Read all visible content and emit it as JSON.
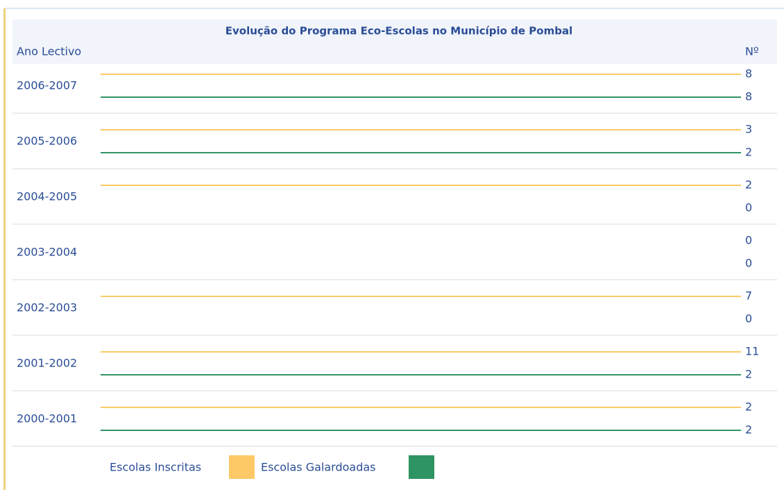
{
  "title": "Evolução do Programa Eco-Escolas no Município de Pombal",
  "header": {
    "year": "Ano Lectivo",
    "count": "Nº"
  },
  "colors": {
    "inscritas": "#fdc966",
    "galardoadas": "#2f9463"
  },
  "rows": [
    {
      "year": "2006-2007",
      "inscritas": 8,
      "galardoadas": 8
    },
    {
      "year": "2005-2006",
      "inscritas": 3,
      "galardoadas": 2
    },
    {
      "year": "2004-2005",
      "inscritas": 2,
      "galardoadas": 0
    },
    {
      "year": "2003-2004",
      "inscritas": 0,
      "galardoadas": 0
    },
    {
      "year": "2002-2003",
      "inscritas": 7,
      "galardoadas": 0
    },
    {
      "year": "2001-2002",
      "inscritas": 11,
      "galardoadas": 2
    },
    {
      "year": "2000-2001",
      "inscritas": 2,
      "galardoadas": 2
    }
  ],
  "legend": {
    "inscritas": "Escolas Inscritas",
    "galardoadas": "Escolas Galardoadas"
  }
}
